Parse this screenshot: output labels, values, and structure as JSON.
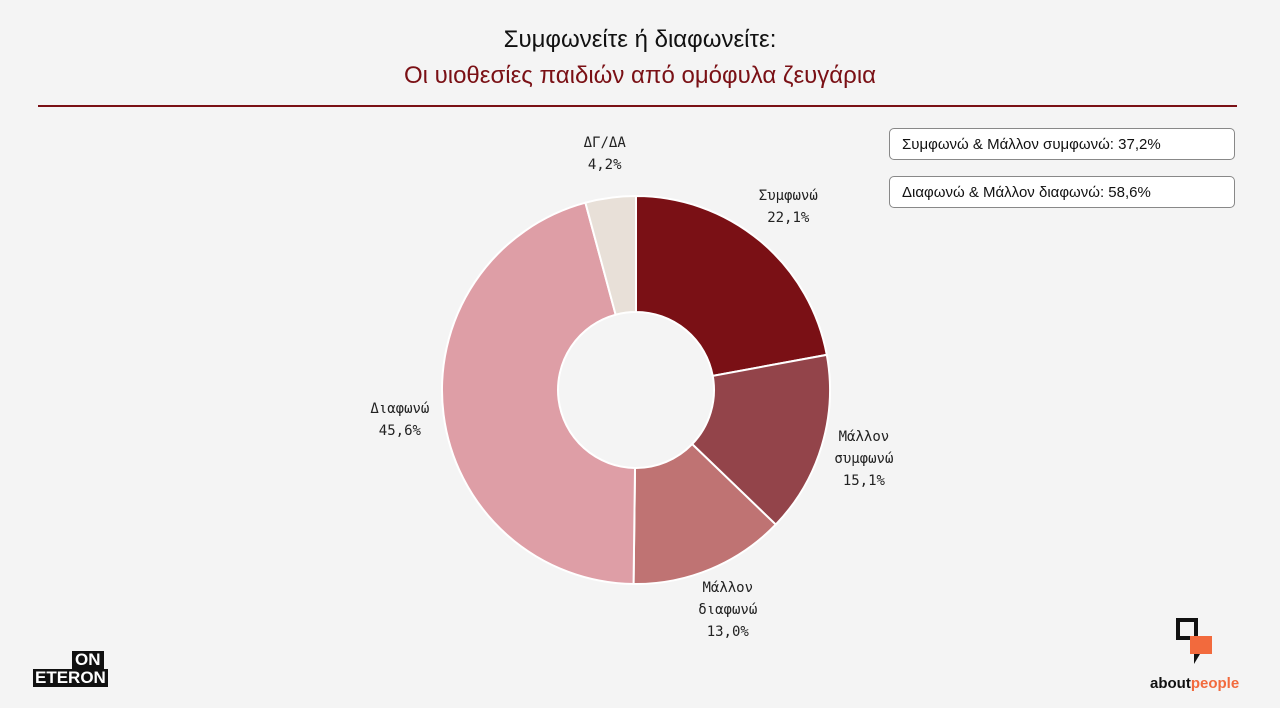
{
  "chart_data": {
    "type": "donut",
    "title": "Συμφωνείτε ή διαφωνείτε:",
    "subtitle": "Οι υιοθεσίες παιδιών από ομόφυλα ζευγάρια",
    "categories": [
      "Συμφωνώ",
      "Μάλλον συμφωνώ",
      "Μάλλον διαφωνώ",
      "Διαφωνώ",
      "ΔΓ/ΔΑ"
    ],
    "values": [
      22.1,
      15.1,
      13.0,
      45.6,
      4.2
    ],
    "value_labels": [
      "22,1%",
      "15,1%",
      "13,0%",
      "45,6%",
      "4,2%"
    ],
    "colors": [
      "#7a1015",
      "#93444a",
      "#bf7373",
      "#de9ea6",
      "#e8e0d8"
    ],
    "annotations": [
      "Συμφωνώ & Μάλλον συμφωνώ: 37,2%",
      "Διαφωνώ & Μάλλον διαφωνώ: 58,6%"
    ]
  },
  "branding": {
    "left": [
      "ON",
      "ETERON"
    ],
    "right": [
      "about",
      "people"
    ]
  }
}
